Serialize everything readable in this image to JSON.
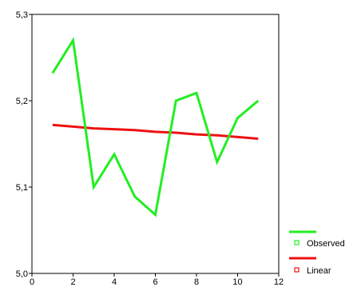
{
  "chart_data": {
    "type": "line",
    "x": [
      1,
      2,
      3,
      4,
      5,
      6,
      7,
      8,
      9,
      10,
      11
    ],
    "series": [
      {
        "name": "Observed",
        "color": "#22ee22",
        "values": [
          5.232,
          5.27,
          5.1,
          5.138,
          5.089,
          5.068,
          5.2,
          5.209,
          5.129,
          5.18,
          5.2
        ]
      },
      {
        "name": "Linear",
        "color": "#ee1111",
        "values": [
          5.172,
          5.17,
          5.168,
          5.167,
          5.166,
          5.164,
          5.163,
          5.161,
          5.16,
          5.158,
          5.156
        ]
      }
    ],
    "xlim": [
      0,
      12
    ],
    "ylim": [
      5.0,
      5.3
    ],
    "xticks": [
      0,
      2,
      4,
      6,
      8,
      10,
      12
    ],
    "xtick_labels": [
      "0",
      "2",
      "4",
      "6",
      "8",
      "10",
      "12"
    ],
    "yticks": [
      5.0,
      5.1,
      5.2,
      5.3
    ],
    "ytick_labels": [
      "5,0",
      "5,1",
      "5,2",
      "5,3"
    ],
    "legend_position": "bottom-right",
    "grid": false
  }
}
